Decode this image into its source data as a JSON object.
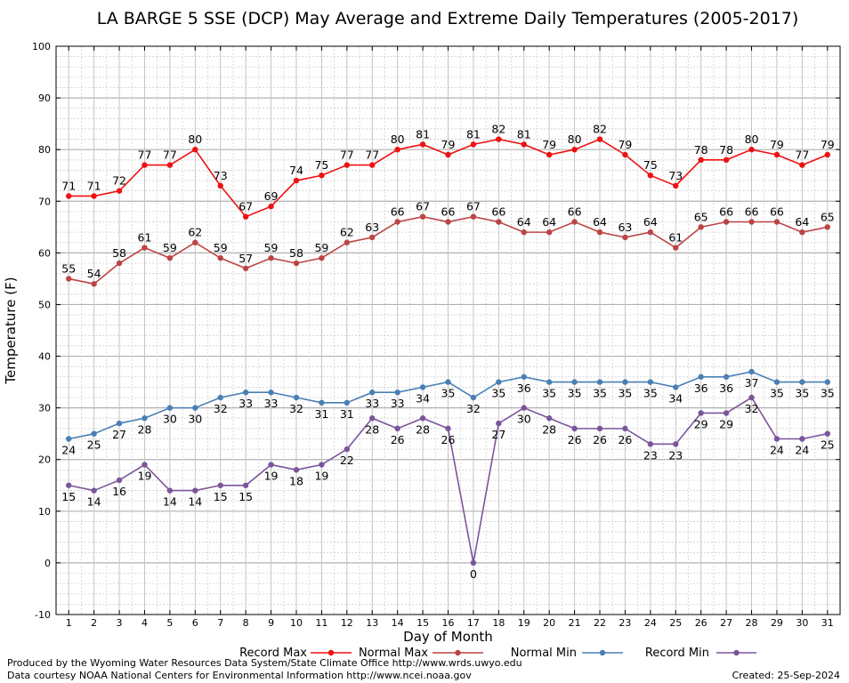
{
  "chart_data": {
    "type": "line",
    "title": "LA BARGE 5 SSE (DCP) May Average and Extreme Daily Temperatures (2005-2017)",
    "xlabel": "Day of Month",
    "ylabel": "Temperature (F)",
    "ylim": [
      -10,
      100
    ],
    "yticks": [
      -10,
      0,
      10,
      20,
      30,
      40,
      50,
      60,
      70,
      80,
      90,
      100
    ],
    "xlim": [
      0.5,
      31.5
    ],
    "x": [
      1,
      2,
      3,
      4,
      5,
      6,
      7,
      8,
      9,
      10,
      11,
      12,
      13,
      14,
      15,
      16,
      17,
      18,
      19,
      20,
      21,
      22,
      23,
      24,
      25,
      26,
      27,
      28,
      29,
      30,
      31
    ],
    "grid": true,
    "legend_position": "bottom",
    "series": [
      {
        "name": "Record Max",
        "color": "#ee1111",
        "label_pos": "above",
        "values": [
          71,
          71,
          72,
          77,
          77,
          80,
          73,
          67,
          69,
          74,
          75,
          77,
          77,
          80,
          81,
          79,
          81,
          82,
          81,
          79,
          80,
          82,
          79,
          75,
          73,
          78,
          78,
          80,
          79,
          77,
          79
        ]
      },
      {
        "name": "Normal Max",
        "color": "#bb4444",
        "label_pos": "above",
        "values": [
          55,
          54,
          58,
          61,
          59,
          62,
          59,
          57,
          59,
          58,
          59,
          62,
          63,
          66,
          67,
          66,
          67,
          66,
          64,
          64,
          66,
          64,
          63,
          64,
          61,
          65,
          66,
          66,
          66,
          64,
          65
        ]
      },
      {
        "name": "Normal Min",
        "color": "#4a7fb5",
        "label_pos": "below",
        "values": [
          24,
          25,
          27,
          28,
          30,
          30,
          32,
          33,
          33,
          32,
          31,
          31,
          33,
          33,
          34,
          35,
          32,
          35,
          36,
          35,
          35,
          35,
          35,
          35,
          34,
          36,
          36,
          37,
          35,
          35,
          35
        ]
      },
      {
        "name": "Record Min",
        "color": "#7b559b",
        "label_pos": "below",
        "values": [
          15,
          14,
          16,
          19,
          14,
          14,
          15,
          15,
          19,
          18,
          19,
          22,
          28,
          26,
          28,
          26,
          0,
          27,
          30,
          28,
          26,
          26,
          26,
          23,
          23,
          29,
          29,
          32,
          24,
          24,
          25
        ]
      }
    ]
  },
  "footer": {
    "produced_by": "Produced by the Wyoming Water Resources Data System/State Climate Office http://www.wrds.uwyo.edu",
    "courtesy": "Data courtesy NOAA National Centers for Environmental Information http://www.ncei.noaa.gov",
    "created": "Created:  25-Sep-2024"
  }
}
